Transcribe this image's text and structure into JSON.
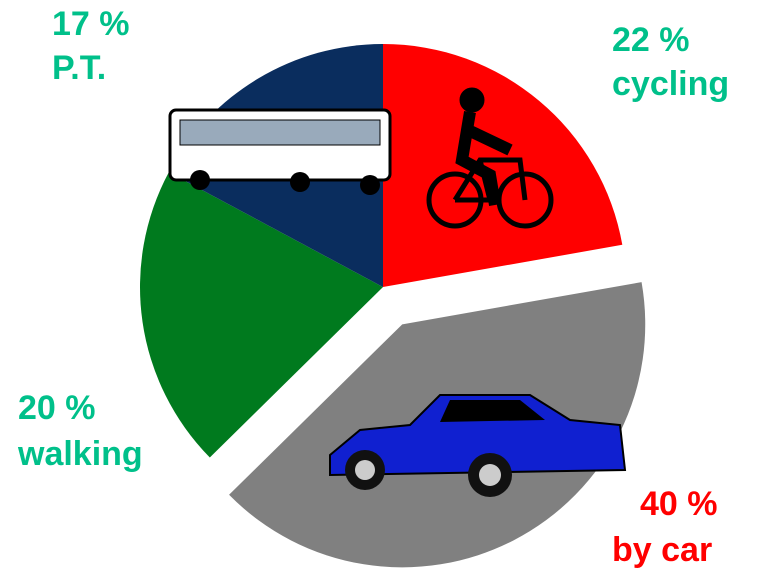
{
  "chart_data": {
    "type": "pie",
    "categories": [
      "cycling",
      "by car",
      "walking",
      "P.T."
    ],
    "values": [
      22,
      40,
      20,
      17
    ],
    "value_labels": [
      "22 %",
      "40 %",
      "20 %",
      "17 %"
    ],
    "colors": [
      "#ff0000",
      "#808080",
      "#007a1e",
      "#0a2d5e"
    ],
    "label_colors": [
      "#00c08a",
      "#ff0000",
      "#00c08a",
      "#00c08a"
    ],
    "exploded": [
      false,
      true,
      false,
      false
    ]
  }
}
